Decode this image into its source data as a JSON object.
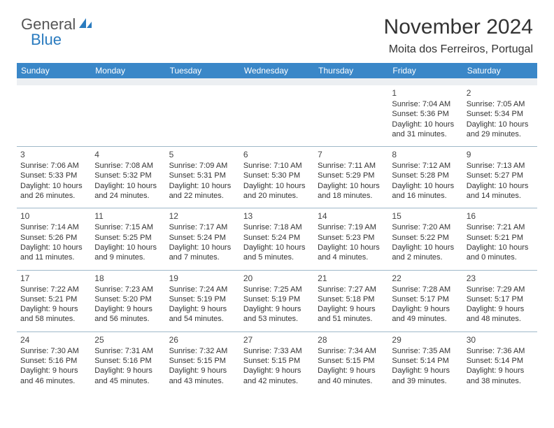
{
  "logo": {
    "text1": "General",
    "text2": "Blue",
    "brand_color": "#2a7bbf"
  },
  "title": "November 2024",
  "location": "Moita dos Ferreiros, Portugal",
  "header_bg": "#3a87c8",
  "header_fg": "#ffffff",
  "divider_color": "#9fb8c9",
  "spacer_color": "#eceff2",
  "day_headers": [
    "Sunday",
    "Monday",
    "Tuesday",
    "Wednesday",
    "Thursday",
    "Friday",
    "Saturday"
  ],
  "weeks": [
    [
      null,
      null,
      null,
      null,
      null,
      {
        "d": "1",
        "sr": "Sunrise: 7:04 AM",
        "ss": "Sunset: 5:36 PM",
        "dl1": "Daylight: 10 hours",
        "dl2": "and 31 minutes."
      },
      {
        "d": "2",
        "sr": "Sunrise: 7:05 AM",
        "ss": "Sunset: 5:34 PM",
        "dl1": "Daylight: 10 hours",
        "dl2": "and 29 minutes."
      }
    ],
    [
      {
        "d": "3",
        "sr": "Sunrise: 7:06 AM",
        "ss": "Sunset: 5:33 PM",
        "dl1": "Daylight: 10 hours",
        "dl2": "and 26 minutes."
      },
      {
        "d": "4",
        "sr": "Sunrise: 7:08 AM",
        "ss": "Sunset: 5:32 PM",
        "dl1": "Daylight: 10 hours",
        "dl2": "and 24 minutes."
      },
      {
        "d": "5",
        "sr": "Sunrise: 7:09 AM",
        "ss": "Sunset: 5:31 PM",
        "dl1": "Daylight: 10 hours",
        "dl2": "and 22 minutes."
      },
      {
        "d": "6",
        "sr": "Sunrise: 7:10 AM",
        "ss": "Sunset: 5:30 PM",
        "dl1": "Daylight: 10 hours",
        "dl2": "and 20 minutes."
      },
      {
        "d": "7",
        "sr": "Sunrise: 7:11 AM",
        "ss": "Sunset: 5:29 PM",
        "dl1": "Daylight: 10 hours",
        "dl2": "and 18 minutes."
      },
      {
        "d": "8",
        "sr": "Sunrise: 7:12 AM",
        "ss": "Sunset: 5:28 PM",
        "dl1": "Daylight: 10 hours",
        "dl2": "and 16 minutes."
      },
      {
        "d": "9",
        "sr": "Sunrise: 7:13 AM",
        "ss": "Sunset: 5:27 PM",
        "dl1": "Daylight: 10 hours",
        "dl2": "and 14 minutes."
      }
    ],
    [
      {
        "d": "10",
        "sr": "Sunrise: 7:14 AM",
        "ss": "Sunset: 5:26 PM",
        "dl1": "Daylight: 10 hours",
        "dl2": "and 11 minutes."
      },
      {
        "d": "11",
        "sr": "Sunrise: 7:15 AM",
        "ss": "Sunset: 5:25 PM",
        "dl1": "Daylight: 10 hours",
        "dl2": "and 9 minutes."
      },
      {
        "d": "12",
        "sr": "Sunrise: 7:17 AM",
        "ss": "Sunset: 5:24 PM",
        "dl1": "Daylight: 10 hours",
        "dl2": "and 7 minutes."
      },
      {
        "d": "13",
        "sr": "Sunrise: 7:18 AM",
        "ss": "Sunset: 5:24 PM",
        "dl1": "Daylight: 10 hours",
        "dl2": "and 5 minutes."
      },
      {
        "d": "14",
        "sr": "Sunrise: 7:19 AM",
        "ss": "Sunset: 5:23 PM",
        "dl1": "Daylight: 10 hours",
        "dl2": "and 4 minutes."
      },
      {
        "d": "15",
        "sr": "Sunrise: 7:20 AM",
        "ss": "Sunset: 5:22 PM",
        "dl1": "Daylight: 10 hours",
        "dl2": "and 2 minutes."
      },
      {
        "d": "16",
        "sr": "Sunrise: 7:21 AM",
        "ss": "Sunset: 5:21 PM",
        "dl1": "Daylight: 10 hours",
        "dl2": "and 0 minutes."
      }
    ],
    [
      {
        "d": "17",
        "sr": "Sunrise: 7:22 AM",
        "ss": "Sunset: 5:21 PM",
        "dl1": "Daylight: 9 hours",
        "dl2": "and 58 minutes."
      },
      {
        "d": "18",
        "sr": "Sunrise: 7:23 AM",
        "ss": "Sunset: 5:20 PM",
        "dl1": "Daylight: 9 hours",
        "dl2": "and 56 minutes."
      },
      {
        "d": "19",
        "sr": "Sunrise: 7:24 AM",
        "ss": "Sunset: 5:19 PM",
        "dl1": "Daylight: 9 hours",
        "dl2": "and 54 minutes."
      },
      {
        "d": "20",
        "sr": "Sunrise: 7:25 AM",
        "ss": "Sunset: 5:19 PM",
        "dl1": "Daylight: 9 hours",
        "dl2": "and 53 minutes."
      },
      {
        "d": "21",
        "sr": "Sunrise: 7:27 AM",
        "ss": "Sunset: 5:18 PM",
        "dl1": "Daylight: 9 hours",
        "dl2": "and 51 minutes."
      },
      {
        "d": "22",
        "sr": "Sunrise: 7:28 AM",
        "ss": "Sunset: 5:17 PM",
        "dl1": "Daylight: 9 hours",
        "dl2": "and 49 minutes."
      },
      {
        "d": "23",
        "sr": "Sunrise: 7:29 AM",
        "ss": "Sunset: 5:17 PM",
        "dl1": "Daylight: 9 hours",
        "dl2": "and 48 minutes."
      }
    ],
    [
      {
        "d": "24",
        "sr": "Sunrise: 7:30 AM",
        "ss": "Sunset: 5:16 PM",
        "dl1": "Daylight: 9 hours",
        "dl2": "and 46 minutes."
      },
      {
        "d": "25",
        "sr": "Sunrise: 7:31 AM",
        "ss": "Sunset: 5:16 PM",
        "dl1": "Daylight: 9 hours",
        "dl2": "and 45 minutes."
      },
      {
        "d": "26",
        "sr": "Sunrise: 7:32 AM",
        "ss": "Sunset: 5:15 PM",
        "dl1": "Daylight: 9 hours",
        "dl2": "and 43 minutes."
      },
      {
        "d": "27",
        "sr": "Sunrise: 7:33 AM",
        "ss": "Sunset: 5:15 PM",
        "dl1": "Daylight: 9 hours",
        "dl2": "and 42 minutes."
      },
      {
        "d": "28",
        "sr": "Sunrise: 7:34 AM",
        "ss": "Sunset: 5:15 PM",
        "dl1": "Daylight: 9 hours",
        "dl2": "and 40 minutes."
      },
      {
        "d": "29",
        "sr": "Sunrise: 7:35 AM",
        "ss": "Sunset: 5:14 PM",
        "dl1": "Daylight: 9 hours",
        "dl2": "and 39 minutes."
      },
      {
        "d": "30",
        "sr": "Sunrise: 7:36 AM",
        "ss": "Sunset: 5:14 PM",
        "dl1": "Daylight: 9 hours",
        "dl2": "and 38 minutes."
      }
    ]
  ]
}
